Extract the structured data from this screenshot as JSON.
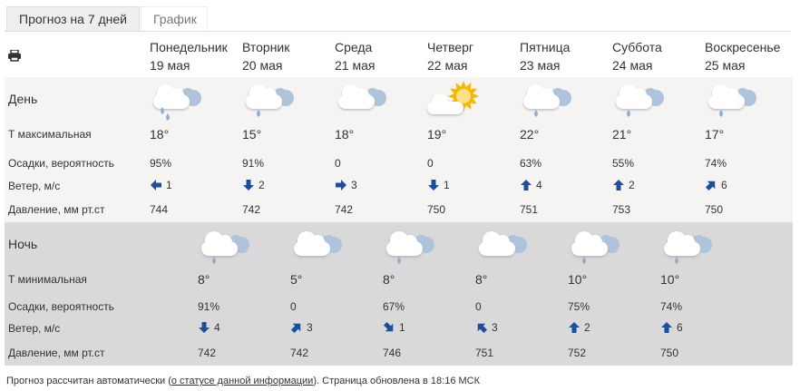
{
  "tabs": [
    {
      "label": "Прогноз на 7 дней",
      "active": true
    },
    {
      "label": "График",
      "active": false
    }
  ],
  "print_icon": "printer-icon",
  "days": [
    {
      "name": "Понедельник",
      "date": "19 мая",
      "icon": "cloud-rain",
      "tmax": "18°",
      "precip": "95%",
      "wind_dir": 270,
      "wind": "1",
      "pressure": "744"
    },
    {
      "name": "Вторник",
      "date": "20 мая",
      "icon": "cloud-drop",
      "tmax": "15°",
      "precip": "91%",
      "wind_dir": 180,
      "wind": "2",
      "pressure": "742"
    },
    {
      "name": "Среда",
      "date": "21 мая",
      "icon": "cloud",
      "tmax": "18°",
      "precip": "0",
      "wind_dir": 90,
      "wind": "3",
      "pressure": "742"
    },
    {
      "name": "Четверг",
      "date": "22 мая",
      "icon": "sun-cloud",
      "tmax": "19°",
      "precip": "0",
      "wind_dir": 180,
      "wind": "1",
      "pressure": "750"
    },
    {
      "name": "Пятница",
      "date": "23 мая",
      "icon": "cloud-drop",
      "tmax": "22°",
      "precip": "63%",
      "wind_dir": 0,
      "wind": "4",
      "pressure": "751"
    },
    {
      "name": "Суббота",
      "date": "24 мая",
      "icon": "cloud-drop",
      "tmax": "21°",
      "precip": "55%",
      "wind_dir": 0,
      "wind": "2",
      "pressure": "753"
    },
    {
      "name": "Воскресенье",
      "date": "25 мая",
      "icon": "cloud-drop",
      "tmax": "17°",
      "precip": "74%",
      "wind_dir": 45,
      "wind": "6",
      "pressure": "750"
    }
  ],
  "nights": [
    {
      "icon": "cloud-drop",
      "tmin": "8°",
      "precip": "91%",
      "wind_dir": 180,
      "wind": "4",
      "pressure": "742"
    },
    {
      "icon": "cloud",
      "tmin": "5°",
      "precip": "0",
      "wind_dir": 45,
      "wind": "3",
      "pressure": "742"
    },
    {
      "icon": "cloud-drop",
      "tmin": "8°",
      "precip": "67%",
      "wind_dir": 135,
      "wind": "1",
      "pressure": "746"
    },
    {
      "icon": "cloud",
      "tmin": "8°",
      "precip": "0",
      "wind_dir": 315,
      "wind": "3",
      "pressure": "751"
    },
    {
      "icon": "cloud-drop",
      "tmin": "10°",
      "precip": "75%",
      "wind_dir": 0,
      "wind": "2",
      "pressure": "752"
    },
    {
      "icon": "cloud-drop",
      "tmin": "10°",
      "precip": "74%",
      "wind_dir": 0,
      "wind": "6",
      "pressure": "750"
    }
  ],
  "labels": {
    "day": "День",
    "night": "Ночь",
    "tmax": "Т максимальная",
    "tmin": "Т минимальная",
    "precip": "Осадки, вероятность",
    "wind": "Ветер, м/с",
    "pressure": "Давление, мм рт.ст"
  },
  "footer": {
    "pre": "Прогноз рассчитан автоматически (",
    "link": "о статусе данной информации",
    "post": "). Страница обновлена в 18:16 МСК"
  },
  "colors": {
    "arrow": "#1a4f9c",
    "day_bg": "#f5f4f3",
    "night_bg": "#d9d9d9",
    "sun": "#f5b800"
  }
}
